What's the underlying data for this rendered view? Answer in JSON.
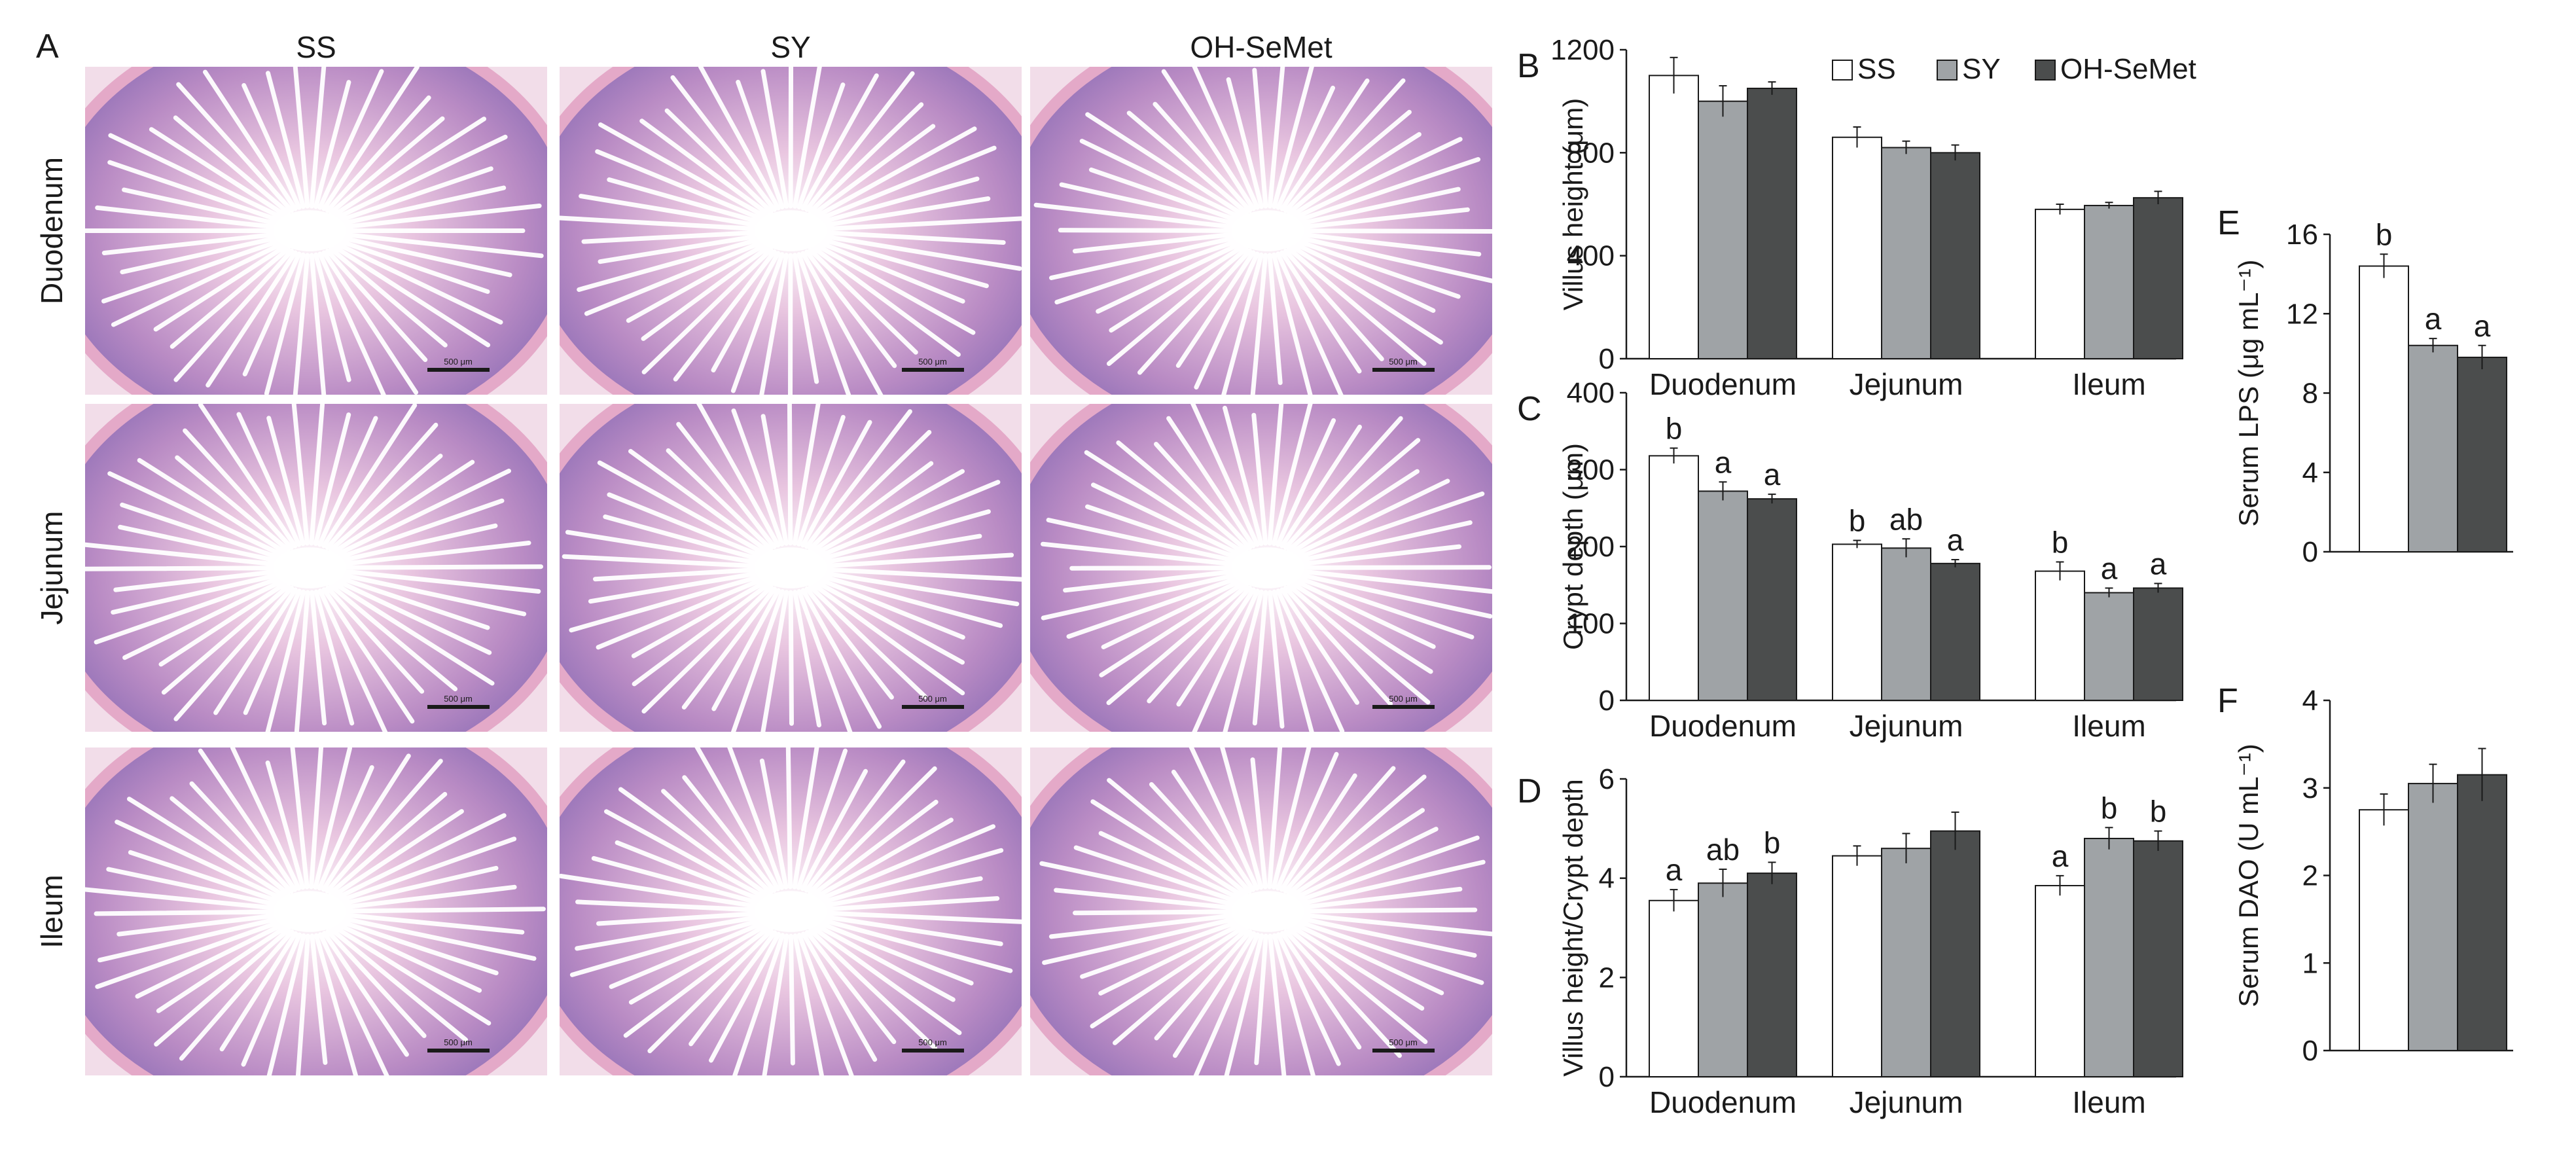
{
  "colors": {
    "SS": "#ffffff",
    "SY": "#9fa3a6",
    "OH-SeMet": "#4b4d4d",
    "axis": "#1a1a1a",
    "tissue": "#c98fc3",
    "tissue_dark": "#9a78bd",
    "scale_bar": "#1a1a1a"
  },
  "panel_a": {
    "letter": "A",
    "columns": [
      "SS",
      "SY",
      "OH-SeMet"
    ],
    "rows": [
      "Duodenum",
      "Jejunum",
      "Ileum"
    ],
    "scale_bar_label": "500 μm"
  },
  "legend": [
    "SS",
    "SY",
    "OH-SeMet"
  ],
  "chart_data": [
    {
      "id": "B",
      "type": "bar",
      "ylabel": "Villus height (μm)",
      "xlabel": "",
      "categories": [
        "Duodenum",
        "Jejunum",
        "Ileum"
      ],
      "ylim": [
        0,
        1200
      ],
      "yticks": [
        0,
        400,
        800,
        1200
      ],
      "series": [
        {
          "name": "SS",
          "values": [
            1100,
            860,
            580
          ],
          "errors": [
            70,
            40,
            20
          ],
          "letters": [
            "",
            "",
            ""
          ]
        },
        {
          "name": "SY",
          "values": [
            1000,
            820,
            595
          ],
          "errors": [
            60,
            25,
            12
          ],
          "letters": [
            "",
            "",
            ""
          ]
        },
        {
          "name": "OH-SeMet",
          "values": [
            1050,
            800,
            625
          ],
          "errors": [
            25,
            30,
            25
          ],
          "letters": [
            "",
            "",
            ""
          ]
        }
      ]
    },
    {
      "id": "C",
      "type": "bar",
      "ylabel": "Crypt depth (μm)",
      "xlabel": "",
      "categories": [
        "Duodenum",
        "Jejunum",
        "Ileum"
      ],
      "ylim": [
        0,
        400
      ],
      "yticks": [
        0,
        100,
        200,
        300,
        400
      ],
      "series": [
        {
          "name": "SS",
          "values": [
            318,
            203,
            168
          ],
          "errors": [
            10,
            5,
            12
          ],
          "letters": [
            "b",
            "b",
            "b"
          ]
        },
        {
          "name": "SY",
          "values": [
            272,
            198,
            140
          ],
          "errors": [
            12,
            12,
            6
          ],
          "letters": [
            "a",
            "ab",
            "a"
          ]
        },
        {
          "name": "OH-SeMet",
          "values": [
            262,
            178,
            146
          ],
          "errors": [
            6,
            5,
            6
          ],
          "letters": [
            "a",
            "a",
            "a"
          ]
        }
      ]
    },
    {
      "id": "D",
      "type": "bar",
      "ylabel": "Villus height/Crypt depth",
      "xlabel": "",
      "categories": [
        "Duodenum",
        "Jejunum",
        "Ileum"
      ],
      "ylim": [
        0,
        6
      ],
      "yticks": [
        0,
        2,
        4,
        6
      ],
      "series": [
        {
          "name": "SS",
          "values": [
            3.55,
            4.45,
            3.85
          ],
          "errors": [
            0.22,
            0.2,
            0.2
          ],
          "letters": [
            "a",
            "",
            "a"
          ]
        },
        {
          "name": "SY",
          "values": [
            3.9,
            4.6,
            4.8
          ],
          "errors": [
            0.28,
            0.3,
            0.22
          ],
          "letters": [
            "ab",
            "",
            "b"
          ]
        },
        {
          "name": "OH-SeMet",
          "values": [
            4.1,
            4.95,
            4.75
          ],
          "errors": [
            0.22,
            0.38,
            0.2
          ],
          "letters": [
            "b",
            "",
            "b"
          ]
        }
      ]
    },
    {
      "id": "E",
      "type": "bar",
      "ylabel": "Serum LPS (μg mL⁻¹)",
      "xlabel": "",
      "categories": [
        ""
      ],
      "ylim": [
        0,
        16
      ],
      "yticks": [
        0,
        4,
        8,
        12,
        16
      ],
      "series": [
        {
          "name": "SS",
          "values": [
            14.4
          ],
          "errors": [
            0.6
          ],
          "letters": [
            "b"
          ]
        },
        {
          "name": "SY",
          "values": [
            10.4
          ],
          "errors": [
            0.35
          ],
          "letters": [
            "a"
          ]
        },
        {
          "name": "OH-SeMet",
          "values": [
            9.8
          ],
          "errors": [
            0.6
          ],
          "letters": [
            "a"
          ]
        }
      ]
    },
    {
      "id": "F",
      "type": "bar",
      "ylabel": "Serum DAO (U mL⁻¹)",
      "xlabel": "",
      "categories": [
        ""
      ],
      "ylim": [
        0,
        4
      ],
      "yticks": [
        0,
        1,
        2,
        3,
        4
      ],
      "series": [
        {
          "name": "SS",
          "values": [
            2.75
          ],
          "errors": [
            0.18
          ],
          "letters": [
            ""
          ]
        },
        {
          "name": "SY",
          "values": [
            3.05
          ],
          "errors": [
            0.22
          ],
          "letters": [
            ""
          ]
        },
        {
          "name": "OH-SeMet",
          "values": [
            3.15
          ],
          "errors": [
            0.3
          ],
          "letters": [
            ""
          ]
        }
      ]
    }
  ]
}
